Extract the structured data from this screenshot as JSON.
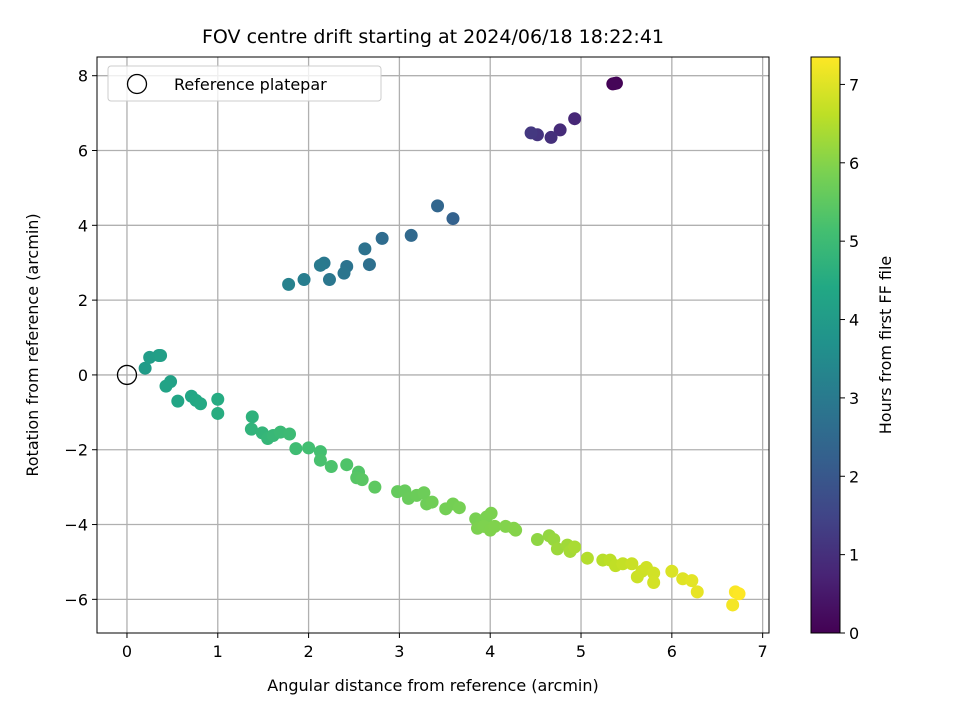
{
  "chart_data": {
    "type": "scatter",
    "title": "FOV centre drift starting at 2024/06/18 18:22:41",
    "xlabel": "Angular distance from reference (arcmin)",
    "ylabel": "Rotation from reference (arcmin)",
    "xlim": [
      -0.33,
      7.07
    ],
    "ylim": [
      -6.9,
      8.5
    ],
    "xticks": [
      0,
      1,
      2,
      3,
      4,
      5,
      6,
      7
    ],
    "yticks": [
      -6,
      -4,
      -2,
      0,
      2,
      4,
      6,
      8
    ],
    "grid": true,
    "legend": {
      "placement": "top-left",
      "entries": [
        "Reference platepar"
      ]
    },
    "reference_point": {
      "x": 0,
      "y": 0,
      "label": "Reference platepar"
    },
    "colorbar": {
      "label": "Hours from first FF file",
      "colormap": "viridis",
      "range": [
        0,
        7.35
      ],
      "ticks": [
        0,
        1,
        2,
        3,
        4,
        5,
        6,
        7
      ]
    },
    "points": [
      {
        "x": 5.35,
        "y": 7.78,
        "h": 0.0
      },
      {
        "x": 5.39,
        "y": 7.8,
        "h": 0.05
      },
      {
        "x": 5.37,
        "y": 7.79,
        "h": 0.1
      },
      {
        "x": 4.93,
        "y": 6.85,
        "h": 0.8
      },
      {
        "x": 4.77,
        "y": 6.55,
        "h": 0.9
      },
      {
        "x": 4.67,
        "y": 6.35,
        "h": 1.0
      },
      {
        "x": 4.52,
        "y": 6.42,
        "h": 1.1
      },
      {
        "x": 4.45,
        "y": 6.47,
        "h": 1.2
      },
      {
        "x": 3.59,
        "y": 4.18,
        "h": 2.3
      },
      {
        "x": 3.42,
        "y": 4.52,
        "h": 2.4
      },
      {
        "x": 3.13,
        "y": 3.73,
        "h": 2.5
      },
      {
        "x": 2.81,
        "y": 3.65,
        "h": 2.6
      },
      {
        "x": 2.67,
        "y": 2.95,
        "h": 2.7
      },
      {
        "x": 2.62,
        "y": 3.37,
        "h": 2.75
      },
      {
        "x": 2.42,
        "y": 2.9,
        "h": 2.8
      },
      {
        "x": 2.39,
        "y": 2.72,
        "h": 2.85
      },
      {
        "x": 2.23,
        "y": 2.55,
        "h": 2.9
      },
      {
        "x": 2.17,
        "y": 2.99,
        "h": 2.95
      },
      {
        "x": 2.13,
        "y": 2.93,
        "h": 3.0
      },
      {
        "x": 1.95,
        "y": 2.55,
        "h": 3.1
      },
      {
        "x": 1.78,
        "y": 2.42,
        "h": 3.2
      },
      {
        "x": 0.2,
        "y": 0.18,
        "h": 4.0
      },
      {
        "x": 0.25,
        "y": 0.47,
        "h": 4.05
      },
      {
        "x": 0.35,
        "y": 0.52,
        "h": 4.1
      },
      {
        "x": 0.37,
        "y": 0.52,
        "h": 4.12
      },
      {
        "x": 0.48,
        "y": -0.18,
        "h": 4.2
      },
      {
        "x": 0.43,
        "y": -0.3,
        "h": 4.25
      },
      {
        "x": 0.56,
        "y": -0.7,
        "h": 4.3
      },
      {
        "x": 0.71,
        "y": -0.57,
        "h": 4.35
      },
      {
        "x": 0.76,
        "y": -0.68,
        "h": 4.4
      },
      {
        "x": 0.81,
        "y": -0.77,
        "h": 4.45
      },
      {
        "x": 1.0,
        "y": -0.65,
        "h": 4.5
      },
      {
        "x": 1.0,
        "y": -1.03,
        "h": 4.55
      },
      {
        "x": 1.38,
        "y": -1.12,
        "h": 4.7
      },
      {
        "x": 1.37,
        "y": -1.45,
        "h": 4.75
      },
      {
        "x": 1.49,
        "y": -1.55,
        "h": 4.8
      },
      {
        "x": 1.55,
        "y": -1.7,
        "h": 4.85
      },
      {
        "x": 1.61,
        "y": -1.62,
        "h": 4.9
      },
      {
        "x": 1.69,
        "y": -1.53,
        "h": 4.95
      },
      {
        "x": 1.79,
        "y": -1.58,
        "h": 5.0
      },
      {
        "x": 1.86,
        "y": -1.97,
        "h": 5.05
      },
      {
        "x": 2.0,
        "y": -1.95,
        "h": 5.1
      },
      {
        "x": 2.13,
        "y": -2.05,
        "h": 5.15
      },
      {
        "x": 2.13,
        "y": -2.28,
        "h": 5.2
      },
      {
        "x": 2.25,
        "y": -2.45,
        "h": 5.25
      },
      {
        "x": 2.42,
        "y": -2.4,
        "h": 5.3
      },
      {
        "x": 2.55,
        "y": -2.6,
        "h": 5.35
      },
      {
        "x": 2.53,
        "y": -2.75,
        "h": 5.4
      },
      {
        "x": 2.59,
        "y": -2.8,
        "h": 5.45
      },
      {
        "x": 2.73,
        "y": -3.0,
        "h": 5.5
      },
      {
        "x": 2.98,
        "y": -3.12,
        "h": 5.6
      },
      {
        "x": 3.06,
        "y": -3.1,
        "h": 5.62
      },
      {
        "x": 3.1,
        "y": -3.3,
        "h": 5.65
      },
      {
        "x": 3.19,
        "y": -3.22,
        "h": 5.68
      },
      {
        "x": 3.27,
        "y": -3.15,
        "h": 5.7
      },
      {
        "x": 3.3,
        "y": -3.45,
        "h": 5.72
      },
      {
        "x": 3.36,
        "y": -3.4,
        "h": 5.75
      },
      {
        "x": 3.51,
        "y": -3.58,
        "h": 5.78
      },
      {
        "x": 3.59,
        "y": -3.45,
        "h": 5.8
      },
      {
        "x": 3.66,
        "y": -3.55,
        "h": 5.82
      },
      {
        "x": 3.84,
        "y": -3.85,
        "h": 5.85
      },
      {
        "x": 3.91,
        "y": -3.9,
        "h": 5.87
      },
      {
        "x": 3.96,
        "y": -3.8,
        "h": 5.88
      },
      {
        "x": 4.01,
        "y": -3.7,
        "h": 5.89
      },
      {
        "x": 3.86,
        "y": -4.1,
        "h": 5.9
      },
      {
        "x": 3.93,
        "y": -4.05,
        "h": 5.92
      },
      {
        "x": 4.0,
        "y": -4.15,
        "h": 5.94
      },
      {
        "x": 4.05,
        "y": -4.05,
        "h": 5.95
      },
      {
        "x": 4.17,
        "y": -4.05,
        "h": 5.97
      },
      {
        "x": 4.26,
        "y": -4.1,
        "h": 5.99
      },
      {
        "x": 4.28,
        "y": -4.15,
        "h": 6.0
      },
      {
        "x": 4.52,
        "y": -4.4,
        "h": 6.1
      },
      {
        "x": 4.65,
        "y": -4.3,
        "h": 6.15
      },
      {
        "x": 4.7,
        "y": -4.4,
        "h": 6.2
      },
      {
        "x": 4.74,
        "y": -4.65,
        "h": 6.25
      },
      {
        "x": 4.85,
        "y": -4.55,
        "h": 6.3
      },
      {
        "x": 4.88,
        "y": -4.72,
        "h": 6.35
      },
      {
        "x": 4.93,
        "y": -4.6,
        "h": 6.4
      },
      {
        "x": 5.07,
        "y": -4.9,
        "h": 6.5
      },
      {
        "x": 5.24,
        "y": -4.95,
        "h": 6.55
      },
      {
        "x": 5.32,
        "y": -4.95,
        "h": 6.6
      },
      {
        "x": 5.38,
        "y": -5.1,
        "h": 6.65
      },
      {
        "x": 5.46,
        "y": -5.05,
        "h": 6.7
      },
      {
        "x": 5.56,
        "y": -5.05,
        "h": 6.75
      },
      {
        "x": 5.62,
        "y": -5.4,
        "h": 6.78
      },
      {
        "x": 5.67,
        "y": -5.25,
        "h": 6.8
      },
      {
        "x": 5.72,
        "y": -5.15,
        "h": 6.82
      },
      {
        "x": 5.8,
        "y": -5.3,
        "h": 6.85
      },
      {
        "x": 5.8,
        "y": -5.55,
        "h": 6.87
      },
      {
        "x": 6.0,
        "y": -5.25,
        "h": 6.95
      },
      {
        "x": 6.12,
        "y": -5.45,
        "h": 7.0
      },
      {
        "x": 6.22,
        "y": -5.5,
        "h": 7.05
      },
      {
        "x": 6.28,
        "y": -5.8,
        "h": 7.1
      },
      {
        "x": 6.67,
        "y": -6.15,
        "h": 7.25
      },
      {
        "x": 6.7,
        "y": -5.8,
        "h": 7.3
      },
      {
        "x": 6.74,
        "y": -5.85,
        "h": 7.35
      }
    ]
  }
}
